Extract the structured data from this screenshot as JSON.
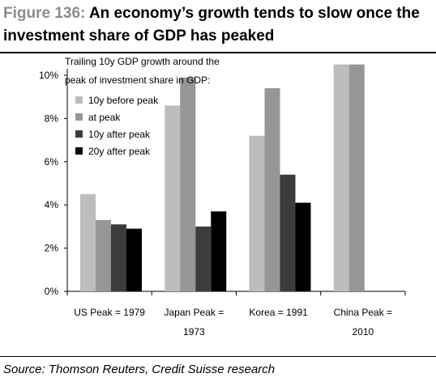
{
  "figure": {
    "number": "Figure 136:",
    "title_rest": "An economy’s growth tends to slow once the investment share of GDP has peaked",
    "source": "Source: Thomson Reuters, Credit Suisse research"
  },
  "colors": {
    "series": [
      "#bdbdbd",
      "#969696",
      "#3c3c3c",
      "#000000"
    ],
    "fig_number": "#8c8c8c"
  },
  "chart_data": {
    "type": "bar",
    "title": "Trailing 10y GDP growth around the peak of investment share in GDP:",
    "legend_placement": "top-left",
    "grid": false,
    "categories": [
      [
        "US Peak = 1979"
      ],
      [
        "Japan Peak =",
        "1973"
      ],
      [
        "Korea = 1991"
      ],
      [
        "China Peak =",
        "2010"
      ]
    ],
    "series": [
      {
        "name": "10y before peak",
        "values": [
          4.5,
          8.6,
          7.2,
          10.5
        ]
      },
      {
        "name": "at peak",
        "values": [
          3.3,
          9.9,
          9.4,
          10.5
        ]
      },
      {
        "name": "10y after peak",
        "values": [
          3.1,
          3.0,
          5.4,
          null
        ]
      },
      {
        "name": "20y after peak",
        "values": [
          2.9,
          3.7,
          4.1,
          null
        ]
      }
    ],
    "ylim": [
      0,
      10
    ],
    "yticks": [
      0,
      2,
      4,
      6,
      8,
      10
    ],
    "ytick_labels": [
      "0%",
      "2%",
      "4%",
      "6%",
      "8%",
      "10%"
    ]
  }
}
